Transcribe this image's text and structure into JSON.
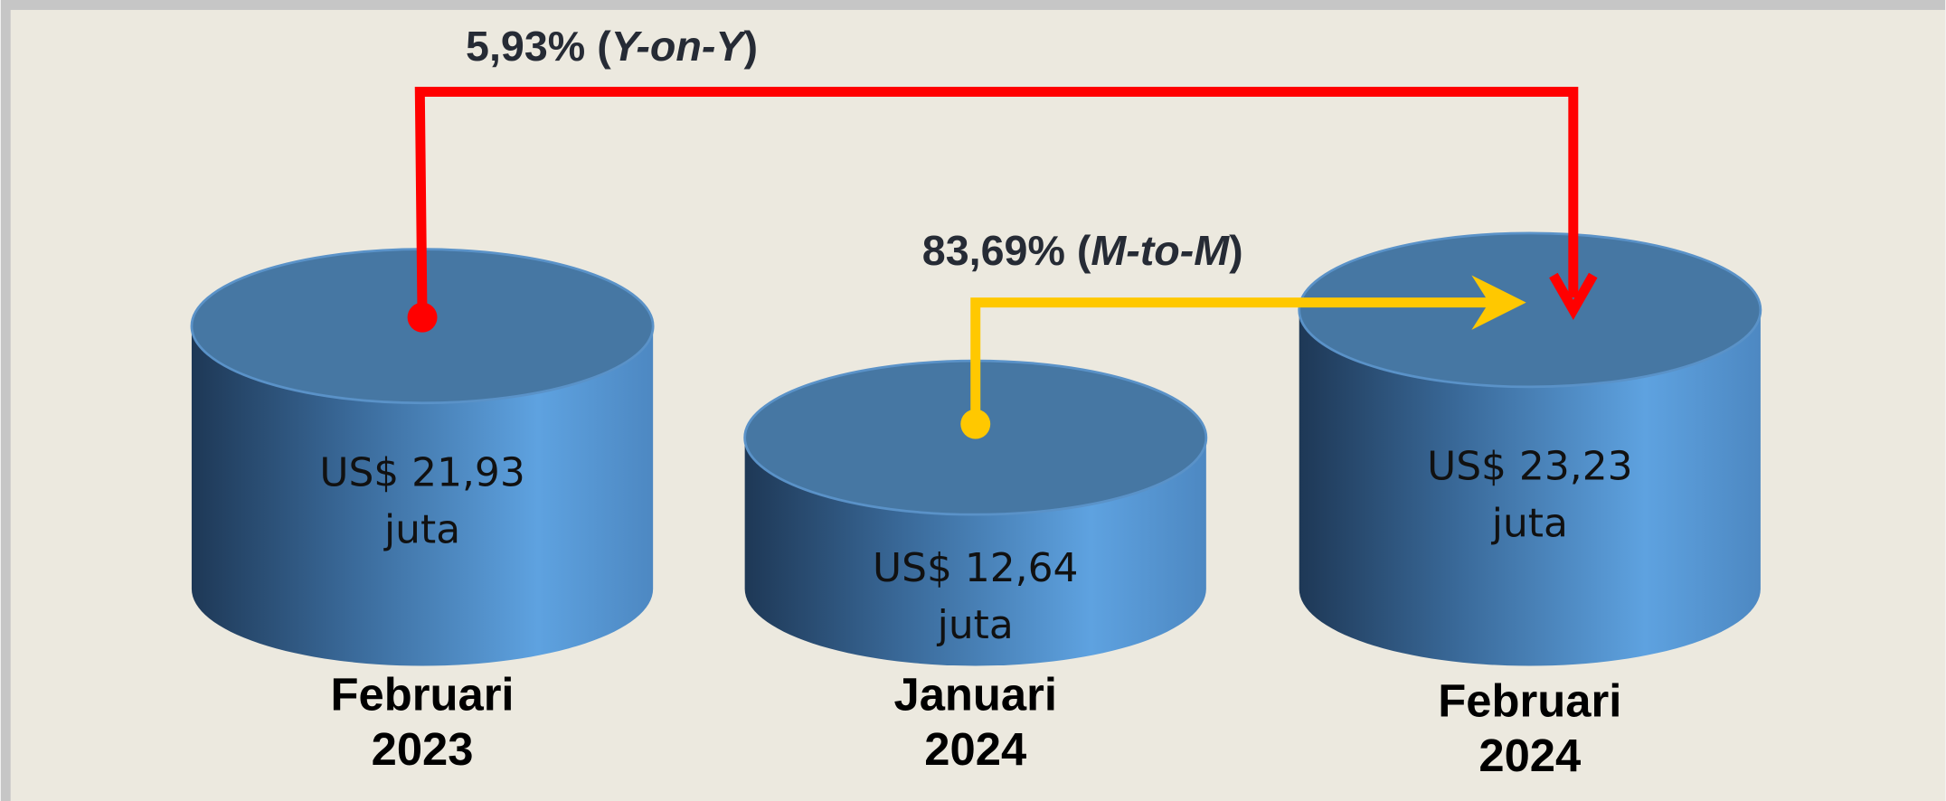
{
  "items": [
    {
      "value": "US$ 21,93",
      "unit": "juta",
      "month": "Februari",
      "year": "2023"
    },
    {
      "value": "US$ 12,64",
      "unit": "juta",
      "month": "Januari",
      "year": "2024"
    },
    {
      "value": "US$ 23,23",
      "unit": "juta",
      "month": "Februari",
      "year": "2024"
    }
  ],
  "yoy": {
    "prefix": "5,93% (",
    "emphasis": "Y-on-Y",
    "suffix": ")"
  },
  "mtm": {
    "prefix": "83,69% (",
    "emphasis": "M-to-M",
    "suffix": ")"
  }
}
